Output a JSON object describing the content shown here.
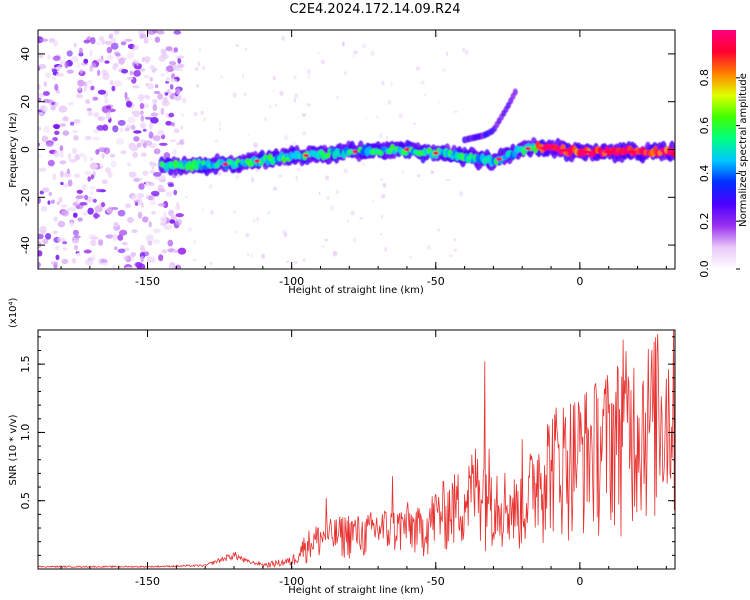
{
  "title": "C2E4.2024.172.14.09.R24",
  "chart_data": [
    {
      "type": "heatmap",
      "xlabel": "Height of straight line (km)",
      "ylabel": "Frequency (Hz)",
      "xlim": [
        -188,
        33
      ],
      "ylim": [
        -50,
        50
      ],
      "xticks": [
        -150,
        -100,
        -50,
        0
      ],
      "yticks": [
        -40,
        -20,
        0,
        20,
        40
      ],
      "colorbar": {
        "label": "Normalized spectral amplitude",
        "range": [
          0,
          1
        ],
        "ticks": [
          "0.0",
          "0.2",
          "0.4",
          "0.6",
          "0.8"
        ],
        "colormap": [
          "#ffffff",
          "#e8c8f8",
          "#9a30f0",
          "#4a00ff",
          "#0030ff",
          "#00c8ff",
          "#00ff80",
          "#40ff00",
          "#e0ff00",
          "#ff8000",
          "#ff0030",
          "#ff0080"
        ]
      },
      "ridge": {
        "x": [
          -145,
          -120,
          -100,
          -80,
          -60,
          -40,
          -30,
          -20,
          -15,
          0,
          33
        ],
        "frequency_hz": [
          -7,
          -6,
          -3,
          -1,
          0,
          -3,
          -5,
          0,
          1,
          -1,
          -1
        ]
      },
      "secondary_ridge": {
        "x": [
          -40,
          -33,
          -30,
          -25,
          -22
        ],
        "frequency_hz": [
          4,
          6,
          8,
          18,
          25
        ]
      },
      "noise_region": {
        "x": [
          -188,
          -138
        ],
        "frequency_hz": [
          -50,
          50
        ]
      }
    },
    {
      "type": "line",
      "xlabel": "Height of straight line (km)",
      "ylabel": "SNR (10 * v/v)",
      "scale_label": "(x10⁴)",
      "xlim": [
        -188,
        33
      ],
      "ylim": [
        0,
        1.75
      ],
      "xticks": [
        -150,
        -100,
        -50,
        0
      ],
      "yticks": [
        "0.5",
        "1.0",
        "1.5"
      ],
      "series": [
        {
          "color": "#e8312f",
          "envelope_x": [
            -188,
            -150,
            -130,
            -120,
            -115,
            -110,
            -100,
            -95,
            -90,
            -85,
            -80,
            -75,
            -70,
            -65,
            -60,
            -55,
            -50,
            -45,
            -40,
            -35,
            -30,
            -25,
            -20,
            -15,
            -10,
            -5,
            0,
            5,
            10,
            15,
            20,
            25,
            30,
            33
          ],
          "envelope_y": [
            0.02,
            0.02,
            0.03,
            0.12,
            0.06,
            0.04,
            0.08,
            0.25,
            0.32,
            0.34,
            0.38,
            0.35,
            0.42,
            0.4,
            0.45,
            0.4,
            0.55,
            0.62,
            0.7,
            0.9,
            0.8,
            0.65,
            0.6,
            0.95,
            1.1,
            1.15,
            1.2,
            1.25,
            1.35,
            1.45,
            1.5,
            1.55,
            1.62,
            1.65
          ],
          "spikes": [
            {
              "x": -33,
              "y": 1.52
            },
            {
              "x": -65,
              "y": 0.68
            },
            {
              "x": -88,
              "y": 0.52
            },
            {
              "x": -20,
              "y": 0.95
            },
            {
              "x": 15,
              "y": 1.68
            },
            {
              "x": 27,
              "y": 1.72
            }
          ]
        }
      ]
    }
  ]
}
